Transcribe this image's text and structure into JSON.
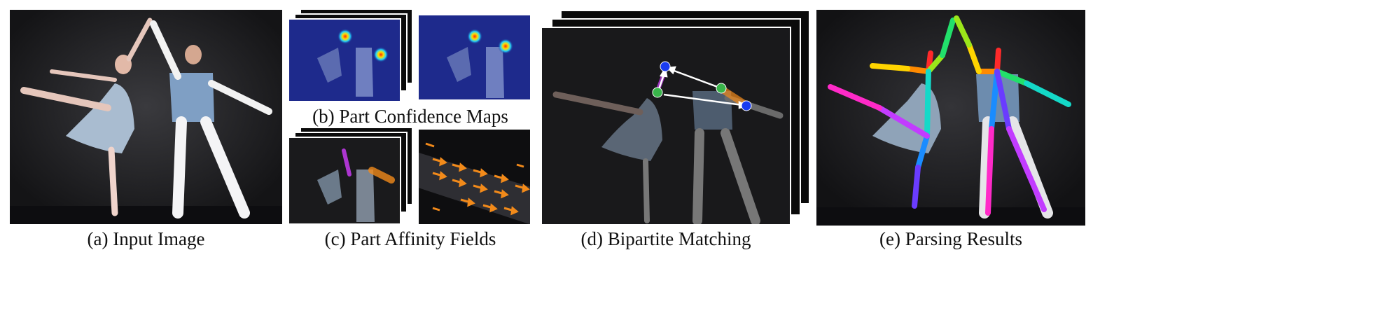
{
  "captions": {
    "a": "(a) Input Image",
    "b": "(b) Part Confidence Maps",
    "c": "(c) Part Affinity Fields",
    "d": "(d) Bipartite Matching",
    "e": "(e) Parsing Results"
  },
  "colors": {
    "stage_bg": "#1a1a1c",
    "heatmap_bg": "#1e2a8c",
    "paf_orange": "#f28a1a",
    "match_blue": "#1a3cf0",
    "match_green": "#39b54a"
  },
  "limb_colors": [
    "#ff2a2a",
    "#ff8a00",
    "#ffd400",
    "#9be61a",
    "#22e06b",
    "#14d9c8",
    "#1a8cff",
    "#6a3cff",
    "#c23cff",
    "#ff2ac8"
  ]
}
